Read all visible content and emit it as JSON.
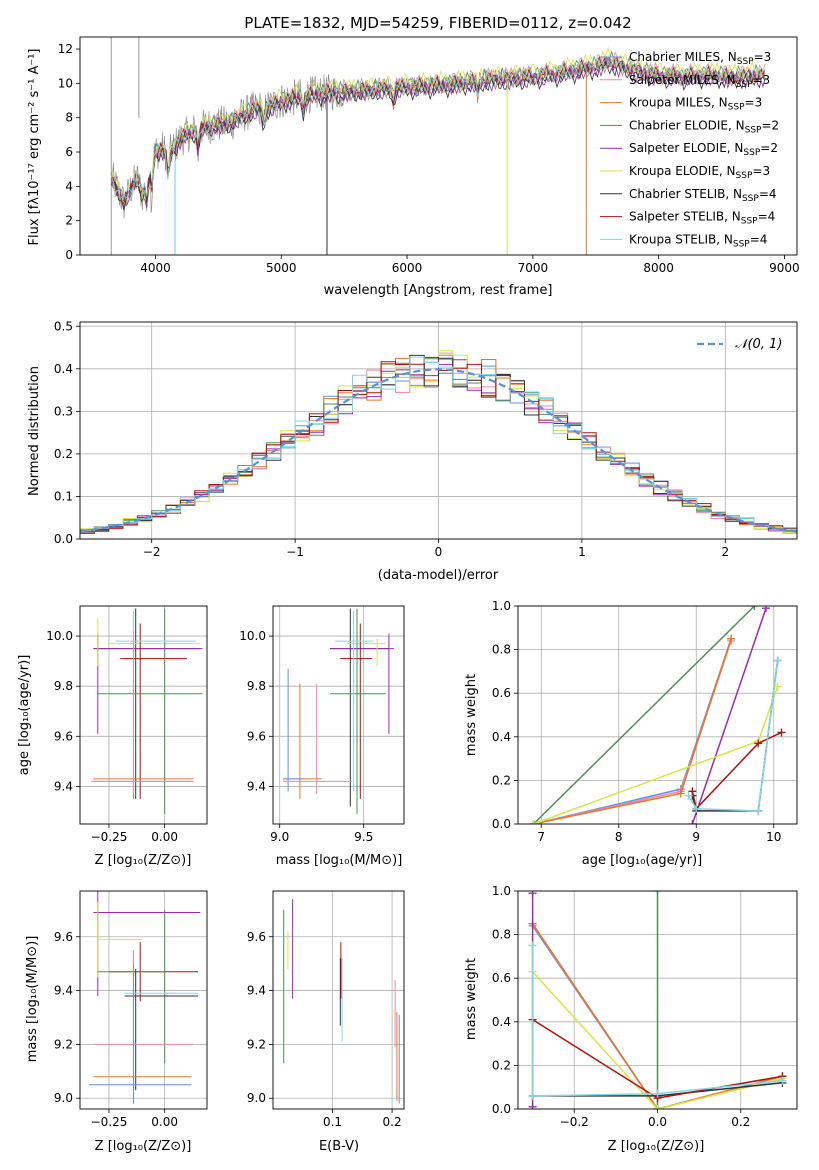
{
  "figure_title": "PLATE=1832, MJD=54259, FIBERID=0112, z=0.042",
  "colors": {
    "chabrier_miles": "#6a8fe0",
    "salpeter_miles": "#ee88aa",
    "kroupa_miles": "#e07b2a",
    "chabrier_elodie": "#4e8f58",
    "salpeter_elodie": "#9a2bb0",
    "kroupa_elodie": "#d6e645",
    "chabrier_stelib": "#333333",
    "salpeter_stelib": "#b01010",
    "kroupa_stelib": "#7fd8e6",
    "data": "#808080",
    "normal": "#5b8fd6"
  },
  "chart_data": [
    {
      "id": "spectrum",
      "type": "line",
      "title": "PLATE=1832, MJD=54259, FIBERID=0112, z=0.042",
      "xlabel": "wavelength [Angstrom, rest frame]",
      "ylabel": "Flux [fλ10⁻¹⁷ erg cm⁻² s⁻¹ A⁻¹]",
      "xlim": [
        3400,
        9100
      ],
      "ylim": [
        0,
        12.7
      ],
      "xticks": [
        4000,
        5000,
        6000,
        7000,
        8000,
        9000
      ],
      "yticks": [
        0,
        2,
        4,
        6,
        8,
        10,
        12
      ],
      "grid": false,
      "legend_position": "upper right",
      "data_curve": {
        "x": [
          3650,
          3700,
          3750,
          3800,
          3850,
          3900,
          3950,
          4000,
          4050,
          4100,
          4200,
          4300,
          4400,
          4500,
          4600,
          4700,
          4800,
          4900,
          5000,
          5200,
          5400,
          5600,
          5800,
          6000,
          6200,
          6400,
          6600,
          6800,
          7000,
          7200,
          7400,
          7500,
          7600,
          7800,
          8000,
          8200,
          8400,
          8600,
          8800
        ],
        "y": [
          4.5,
          3.8,
          3.0,
          3.8,
          4.5,
          3.4,
          5.3,
          6.0,
          6.2,
          5.8,
          6.8,
          7.2,
          7.5,
          7.6,
          7.7,
          8.2,
          8.5,
          8.6,
          9.0,
          9.3,
          9.5,
          9.6,
          9.7,
          9.8,
          9.9,
          10.0,
          10.2,
          10.3,
          10.4,
          10.6,
          10.9,
          11.0,
          11.3,
          10.8,
          10.5,
          10.4,
          10.5,
          10.4,
          10.5
        ]
      },
      "legend": [
        {
          "label": "Chabrier MILES, N",
          "sub": "SSP",
          "tail": "=3",
          "color_key": "chabrier_miles"
        },
        {
          "label": "Salpeter MILES, N",
          "sub": "SSP",
          "tail": "=3",
          "color_key": "salpeter_miles"
        },
        {
          "label": "Kroupa MILES, N",
          "sub": "SSP",
          "tail": "=3",
          "color_key": "kroupa_miles"
        },
        {
          "label": "Chabrier ELODIE, N",
          "sub": "SSP",
          "tail": "=2",
          "color_key": "chabrier_elodie"
        },
        {
          "label": "Salpeter ELODIE, N",
          "sub": "SSP",
          "tail": "=2",
          "color_key": "salpeter_elodie"
        },
        {
          "label": "Kroupa ELODIE, N",
          "sub": "SSP",
          "tail": "=3",
          "color_key": "kroupa_elodie"
        },
        {
          "label": "Chabrier STELIB, N",
          "sub": "SSP",
          "tail": "=4",
          "color_key": "chabrier_stelib"
        },
        {
          "label": "Salpeter STELIB, N",
          "sub": "SSP",
          "tail": "=4",
          "color_key": "salpeter_stelib"
        },
        {
          "label": "Kroupa STELIB, N",
          "sub": "SSP",
          "tail": "=4",
          "color_key": "kroupa_stelib"
        }
      ]
    },
    {
      "id": "residuals",
      "type": "line",
      "xlabel": "(data-model)/error",
      "ylabel": "Normed distribution",
      "xlim": [
        -2.5,
        2.5
      ],
      "ylim": [
        0,
        0.51
      ],
      "xticks": [
        -2,
        -1,
        0,
        1,
        2
      ],
      "yticks": [
        0.0,
        0.1,
        0.2,
        0.3,
        0.4,
        0.5
      ],
      "grid": true,
      "legend_position": "upper right",
      "legend": "𝒩(0, 1)"
    },
    {
      "id": "age_vs_Z",
      "type": "scatter",
      "xlabel": "Z [log₁₀(Z/Z⊙)]",
      "ylabel": "age  [log₁₀(age/yr)]",
      "xlim": [
        -0.38,
        0.19
      ],
      "ylim": [
        9.25,
        10.12
      ],
      "xticks": [
        -0.25,
        0.0
      ],
      "yticks": [
        9.4,
        9.6,
        9.8,
        10.0
      ],
      "grid": true
    },
    {
      "id": "age_vs_mass",
      "type": "scatter",
      "xlabel": "mass [log₁₀(M/M⊙)]",
      "xlim": [
        8.96,
        9.74
      ],
      "ylim": [
        9.25,
        10.12
      ],
      "xticks": [
        9.0,
        9.5
      ],
      "yticks": [
        9.4,
        9.6,
        9.8,
        10.0
      ],
      "grid": true
    },
    {
      "id": "mass_weight_vs_age",
      "type": "line",
      "xlabel": "age  [log₁₀(age/yr)]",
      "ylabel": "mass weight",
      "xlim": [
        6.7,
        10.3
      ],
      "ylim": [
        0,
        1.0
      ],
      "xticks": [
        7,
        8,
        9,
        10
      ],
      "yticks": [
        0.0,
        0.2,
        0.4,
        0.6,
        0.8,
        1.0
      ],
      "grid": true
    },
    {
      "id": "mass_vs_Z",
      "type": "scatter",
      "xlabel": "Z [log₁₀(Z/Z⊙)]",
      "ylabel": "mass [log₁₀(M/M⊙)]",
      "xlim": [
        -0.38,
        0.19
      ],
      "ylim": [
        8.96,
        9.77
      ],
      "xticks": [
        -0.25,
        0.0
      ],
      "yticks": [
        9.0,
        9.2,
        9.4,
        9.6
      ],
      "grid": true
    },
    {
      "id": "mass_vs_ebv",
      "type": "scatter",
      "xlabel": "E(B-V)",
      "xlim": [
        0.0,
        0.22
      ],
      "ylim": [
        8.96,
        9.77
      ],
      "xticks": [
        0.1,
        0.2
      ],
      "yticks": [
        9.0,
        9.2,
        9.4,
        9.6
      ],
      "grid": true
    },
    {
      "id": "mass_weight_vs_Z",
      "type": "line",
      "xlabel": "Z [log₁₀(Z/Z⊙)]",
      "ylabel": "mass weight",
      "xlim": [
        -0.335,
        0.335
      ],
      "ylim": [
        0,
        1.0
      ],
      "xticks": [
        -0.2,
        0.0,
        0.2
      ],
      "yticks": [
        0.0,
        0.2,
        0.4,
        0.6,
        0.8,
        1.0
      ],
      "grid": true
    }
  ]
}
